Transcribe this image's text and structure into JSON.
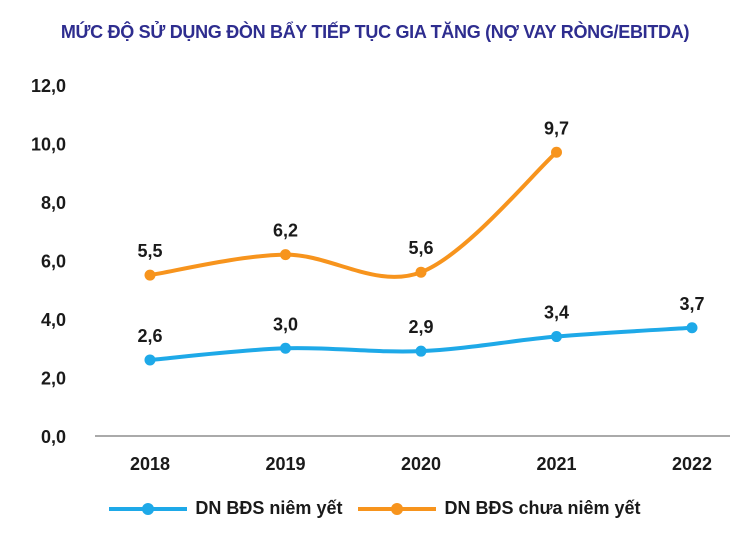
{
  "chart_data": {
    "type": "line",
    "title": "MỨC ĐỘ SỬ DỤNG ĐÒN BẨY TIẾP TỤC GIA TĂNG (NỢ VAY RÒNG/EBITDA)",
    "categories": [
      "2018",
      "2019",
      "2020",
      "2021",
      "2022"
    ],
    "ylim": [
      0,
      12
    ],
    "yticks": [
      "0,0",
      "2,0",
      "4,0",
      "6,0",
      "8,0",
      "10,0",
      "12,0"
    ],
    "grid": false,
    "legend": "bottom",
    "series": [
      {
        "name": "DN BĐS niêm yết",
        "color": "#1ea9e8",
        "values": [
          2.6,
          3.0,
          2.9,
          3.4,
          3.7
        ],
        "labels": [
          "2,6",
          "3,0",
          "2,9",
          "3,4",
          "3,7"
        ]
      },
      {
        "name": "DN BĐS chưa niêm yết",
        "color": "#f7941d",
        "values": [
          5.5,
          6.2,
          5.6,
          9.7,
          null
        ],
        "labels": [
          "5,5",
          "6,2",
          "5,6",
          "9,7",
          null
        ]
      }
    ]
  }
}
